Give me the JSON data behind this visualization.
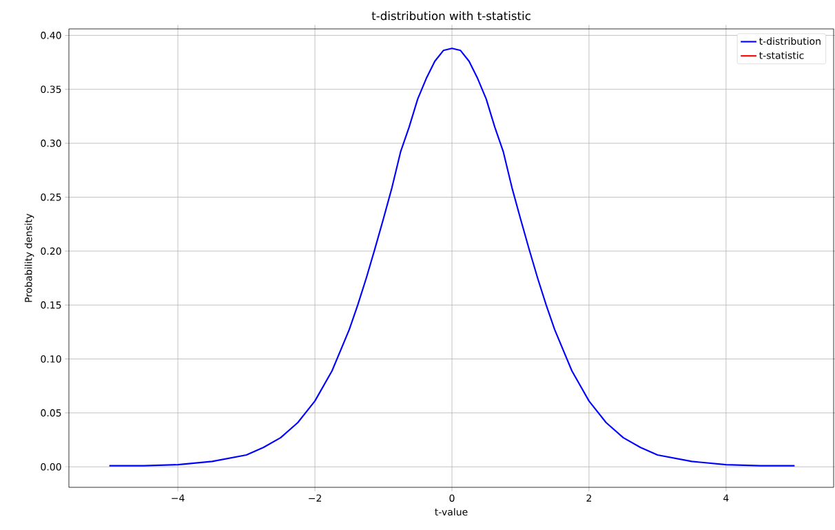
{
  "chart_data": {
    "type": "line",
    "title": "t-distribution with t-statistic",
    "xlabel": "t-value",
    "ylabel": "Probability density",
    "x": [
      -5,
      -4.5,
      -4,
      -3.5,
      -3,
      -2.75,
      -2.5,
      -2.25,
      -2,
      -1.75,
      -1.5,
      -1.375,
      -1.25,
      -1.125,
      -1,
      -0.875,
      -0.75,
      -0.625,
      -0.5,
      -0.375,
      -0.25,
      -0.125,
      0,
      0.125,
      0.25,
      0.375,
      0.5,
      0.625,
      0.75,
      0.875,
      1,
      1.125,
      1.25,
      1.375,
      1.5,
      1.75,
      2,
      2.25,
      2.5,
      2.75,
      3,
      3.5,
      4,
      4.5,
      5
    ],
    "series": [
      {
        "name": "t-distribution",
        "color": "#0000ff",
        "values": [
          0.001,
          0.001,
          0.002,
          0.005,
          0.011,
          0.018,
          0.027,
          0.041,
          0.061,
          0.089,
          0.127,
          0.15,
          0.175,
          0.202,
          0.23,
          0.259,
          0.292,
          0.315,
          0.341,
          0.36,
          0.376,
          0.386,
          0.388,
          0.386,
          0.376,
          0.36,
          0.341,
          0.315,
          0.292,
          0.259,
          0.23,
          0.202,
          0.175,
          0.15,
          0.127,
          0.089,
          0.061,
          0.041,
          0.027,
          0.018,
          0.011,
          0.005,
          0.002,
          0.001,
          0.001
        ]
      },
      {
        "name": "t-statistic",
        "color": "#ff0000",
        "values": [
          null,
          null,
          null,
          null,
          null,
          null,
          null,
          null,
          null,
          null,
          null,
          null,
          null,
          null,
          null,
          null,
          null,
          null,
          null,
          null,
          null,
          null,
          null,
          null,
          null,
          null,
          null,
          null,
          null,
          null,
          null,
          null,
          null,
          null,
          null,
          null,
          null,
          null,
          null,
          null,
          null,
          null,
          null,
          null,
          null
        ]
      }
    ],
    "xlim": [
      -5.59,
      5.57
    ],
    "ylim": [
      -0.019,
      0.406
    ],
    "xticks": [
      {
        "value": -4,
        "label": "−4"
      },
      {
        "value": -2,
        "label": "−2"
      },
      0,
      2,
      4
    ],
    "yticks": [
      {
        "value": 0,
        "label": "0.00"
      },
      0.05,
      {
        "value": 0.1,
        "label": "0.10"
      },
      0.15,
      {
        "value": 0.2,
        "label": "0.20"
      },
      0.25,
      {
        "value": 0.3,
        "label": "0.30"
      },
      0.35,
      {
        "value": 0.4,
        "label": "0.40"
      }
    ],
    "grid": true,
    "legend": "top right"
  }
}
